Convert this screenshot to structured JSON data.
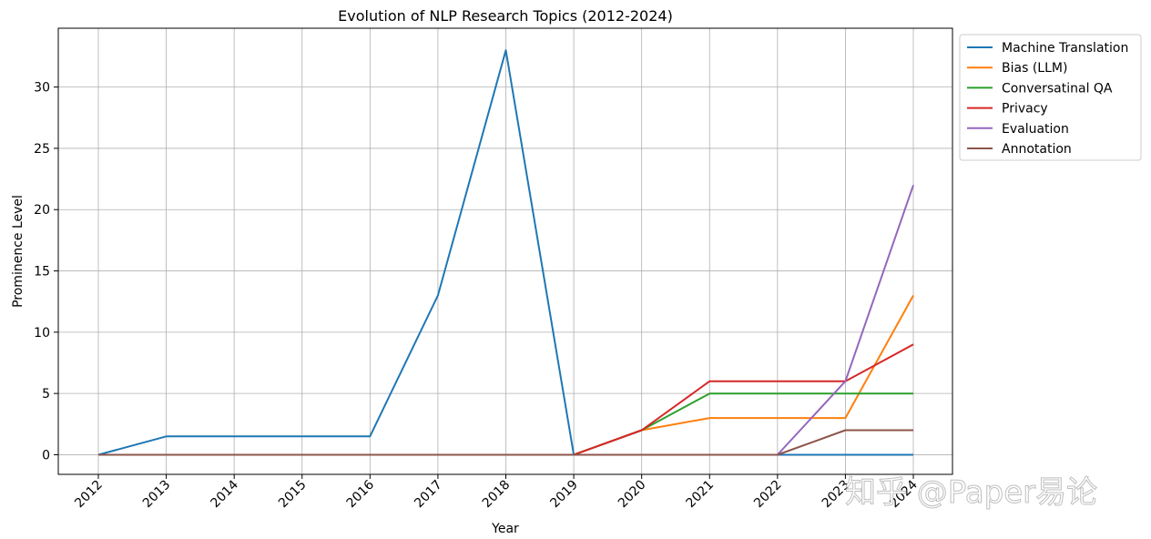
{
  "chart_data": {
    "type": "line",
    "title": "Evolution of NLP Research Topics (2012-2024)",
    "xlabel": "Year",
    "ylabel": "Prominence Level",
    "categories": [
      "2012",
      "2013",
      "2014",
      "2015",
      "2016",
      "2017",
      "2018",
      "2019",
      "2020",
      "2021",
      "2022",
      "2023",
      "2024"
    ],
    "ylim": [
      -1.6,
      34.8
    ],
    "yticks": [
      0,
      5,
      10,
      15,
      20,
      25,
      30
    ],
    "grid": true,
    "legend_position": "outside-top-right",
    "series": [
      {
        "name": "Machine Translation",
        "color": "#1f77b4",
        "values": [
          0,
          1.5,
          1.5,
          1.5,
          1.5,
          13,
          33,
          0,
          0,
          0,
          0,
          0,
          0
        ]
      },
      {
        "name": "Bias (LLM)",
        "color": "#ff7f0e",
        "values": [
          0,
          0,
          0,
          0,
          0,
          0,
          0,
          0,
          2,
          3,
          3,
          3,
          13
        ]
      },
      {
        "name": "Conversatinal QA",
        "color": "#2ca02c",
        "values": [
          0,
          0,
          0,
          0,
          0,
          0,
          0,
          0,
          2,
          5,
          5,
          5,
          5
        ]
      },
      {
        "name": "Privacy",
        "color": "#d62728",
        "values": [
          0,
          0,
          0,
          0,
          0,
          0,
          0,
          0,
          2,
          6,
          6,
          6,
          9
        ]
      },
      {
        "name": "Evaluation",
        "color": "#9467bd",
        "values": [
          0,
          0,
          0,
          0,
          0,
          0,
          0,
          0,
          0,
          0,
          0,
          6,
          22
        ]
      },
      {
        "name": "Annotation",
        "color": "#8c564b",
        "values": [
          0,
          0,
          0,
          0,
          0,
          0,
          0,
          0,
          0,
          0,
          0,
          2,
          2
        ]
      }
    ]
  },
  "watermark": "知乎 @Paper易论"
}
